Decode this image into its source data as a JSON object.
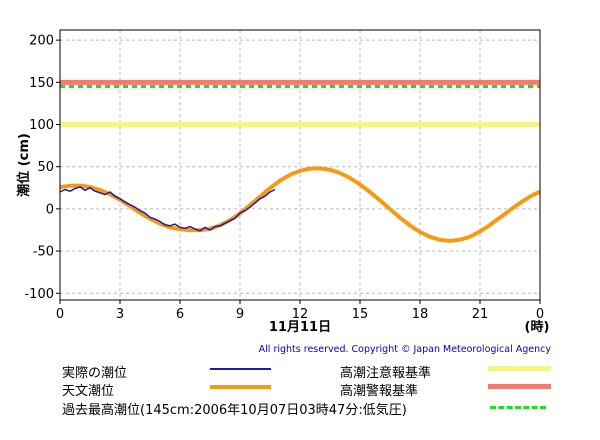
{
  "chart_data": {
    "type": "line",
    "ylabel": "潮位 (cm)",
    "date_label": "11月11日",
    "x_unit_label": "(時)",
    "x_ticks": [
      "0",
      "3",
      "6",
      "9",
      "12",
      "15",
      "18",
      "21",
      "0"
    ],
    "y_ticks": [
      "200",
      "150",
      "100",
      "50",
      "0",
      "-50",
      "-100"
    ],
    "xlim": [
      0,
      24
    ],
    "ylim": [
      -108,
      212
    ],
    "grid": true,
    "reference_lines": [
      {
        "name": "高潮警報基準",
        "value": 150,
        "color": "#f47a6b",
        "style": "solid"
      },
      {
        "name": "過去最高潮位",
        "value": 145,
        "color": "#22dd22",
        "style": "dashed"
      },
      {
        "name": "高潮注意報基準",
        "value": 100,
        "color": "#f8f28a",
        "style": "solid"
      }
    ],
    "series": [
      {
        "name": "天文潮位",
        "color": "#f59a12",
        "x": [
          0,
          0.5,
          1,
          1.5,
          2,
          2.5,
          3,
          3.5,
          4,
          4.5,
          5,
          5.5,
          6,
          6.5,
          7,
          7.5,
          8,
          8.5,
          9,
          9.5,
          10,
          10.5,
          11,
          11.5,
          12,
          12.5,
          13,
          13.5,
          14,
          14.5,
          15,
          15.5,
          16,
          16.5,
          17,
          17.5,
          18,
          18.5,
          19,
          19.5,
          20,
          20.5,
          21,
          21.5,
          22,
          22.5,
          23,
          23.5,
          24
        ],
        "y": [
          25.7,
          27.5,
          27.6,
          25.9,
          22.4,
          17.3,
          10.8,
          3.2,
          -4.6,
          -11.6,
          -17.5,
          -21.9,
          -24.1,
          -25.2,
          -25.3,
          -23.6,
          -19.6,
          -13.4,
          -5.2,
          4.4,
          14.6,
          24.6,
          33.5,
          40.4,
          45.0,
          47.7,
          48.0,
          46.3,
          42.5,
          36.6,
          28.9,
          19.9,
          10.0,
          -0.3,
          -10.4,
          -19.7,
          -27.4,
          -33.1,
          -36.8,
          -38.0,
          -36.6,
          -32.8,
          -26.8,
          -19.0,
          -10.3,
          -1.4,
          7.1,
          14.5,
          20.3
        ]
      },
      {
        "name": "実際の潮位",
        "color": "#1a1ab5",
        "x": [
          0,
          0.25,
          0.5,
          0.75,
          1,
          1.25,
          1.5,
          1.75,
          2,
          2.25,
          2.5,
          2.75,
          3,
          3.25,
          3.5,
          3.75,
          4,
          4.25,
          4.5,
          4.75,
          5,
          5.25,
          5.5,
          5.75,
          6,
          6.25,
          6.5,
          6.75,
          7,
          7.25,
          7.5,
          7.75,
          8,
          8.25,
          8.5,
          8.75,
          9,
          9.25,
          9.5,
          9.75,
          10,
          10.25,
          10.5,
          10.75
        ],
        "y": [
          20,
          23,
          21,
          24,
          26,
          22,
          25,
          21,
          19,
          17,
          20,
          15,
          12,
          8,
          5,
          2,
          -2,
          -5,
          -10,
          -12,
          -15,
          -19,
          -20,
          -18,
          -22,
          -23,
          -21,
          -24,
          -26,
          -22,
          -25,
          -21,
          -20,
          -17,
          -14,
          -11,
          -5,
          -2,
          2,
          7,
          12,
          15,
          20,
          23
        ]
      }
    ]
  },
  "copyright": "All rights reserved. Copyright © Japan Meteorological Agency",
  "legend": {
    "actual": "実際の潮位",
    "astro": "天文潮位",
    "advisory": "高潮注意報基準",
    "warning": "高潮警報基準",
    "record": "過去最高潮位(145cm:2006年10月07日03時47分:低気圧)"
  }
}
